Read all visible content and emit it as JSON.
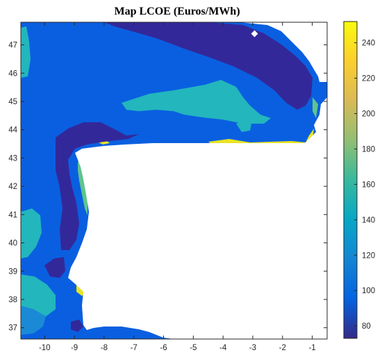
{
  "chart_data": {
    "type": "heatmap",
    "title": "Map LCOE (Euros/MWh)",
    "xlabel": "",
    "ylabel": "",
    "x_ticks": [
      -10,
      -9,
      -8,
      -7,
      -6,
      -5,
      -4,
      -3,
      -2,
      -1
    ],
    "y_ticks": [
      37,
      38,
      39,
      40,
      41,
      42,
      43,
      44,
      45,
      46,
      47
    ],
    "xlim": [
      -10.8,
      -0.5
    ],
    "ylim": [
      36.6,
      47.8
    ],
    "colorbar": {
      "range": [
        73,
        252
      ],
      "ticks": [
        80,
        100,
        120,
        140,
        160,
        180,
        200,
        220,
        240
      ],
      "colormap": "parula",
      "stops": [
        "#352a87",
        "#0363e1",
        "#1485d4",
        "#06a7c6",
        "#38b99e",
        "#92bf73",
        "#d9ba56",
        "#fcce2e",
        "#f9fb0e"
      ]
    },
    "colors": {
      "land": "#ffffff",
      "level_80": "#33289a",
      "level_100": "#0a5fe0",
      "level_120": "#1a8ad6",
      "level_140": "#23b6bd",
      "level_160": "#5ec48d",
      "level_high": "#e8e324"
    }
  }
}
